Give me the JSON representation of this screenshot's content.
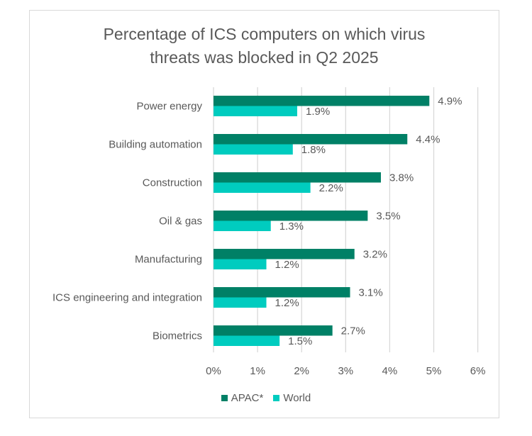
{
  "chart_data": {
    "type": "bar",
    "orientation": "horizontal",
    "title": "Percentage of ICS computers on which virus threats was blocked in Q2 2025",
    "title_lines": [
      "Percentage of ICS computers on which virus",
      "threats was blocked in Q2 2025"
    ],
    "categories": [
      "Power energy",
      "Building automation",
      "Construction",
      "Oil & gas",
      "Manufacturing",
      "ICS engineering and integration",
      "Biometrics"
    ],
    "series": [
      {
        "name": "APAC*",
        "color": "#008066",
        "values": [
          4.9,
          4.4,
          3.8,
          3.5,
          3.2,
          3.1,
          2.7
        ],
        "labels": [
          "4.9%",
          "4.4%",
          "3.8%",
          "3.5%",
          "3.2%",
          "3.1%",
          "2.7%"
        ]
      },
      {
        "name": "World",
        "color": "#00ccbf",
        "values": [
          1.9,
          1.8,
          2.2,
          1.3,
          1.2,
          1.2,
          1.5
        ],
        "labels": [
          "1.9%",
          "1.8%",
          "2.2%",
          "1.3%",
          "1.2%",
          "1.2%",
          "1.5%"
        ]
      }
    ],
    "xlabel": "",
    "ylabel": "",
    "xlim": [
      0,
      6
    ],
    "x_ticks": [
      0,
      1,
      2,
      3,
      4,
      5,
      6
    ],
    "x_tick_labels": [
      "0%",
      "1%",
      "2%",
      "3%",
      "4%",
      "5%",
      "6%"
    ],
    "grid": true,
    "legend_position": "bottom",
    "gridline_color": "#d9d9d9",
    "text_color": "#595959"
  }
}
